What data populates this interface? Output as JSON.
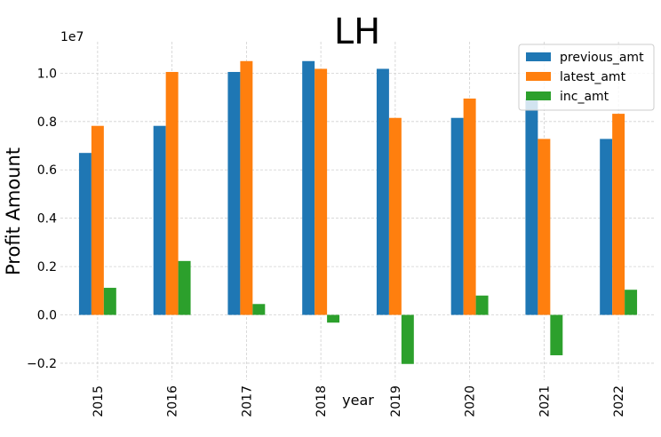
{
  "chart_data": {
    "type": "bar",
    "title": "LH",
    "xlabel": "year",
    "ylabel": "Profit Amount",
    "y_offset_label": "1e7",
    "y_scale": 10000000,
    "categories": [
      "2015",
      "2016",
      "2017",
      "2018",
      "2019",
      "2020",
      "2021",
      "2022"
    ],
    "series": [
      {
        "name": "previous_amt",
        "color": "#1f77b4",
        "values": [
          6700000,
          7820000,
          10050000,
          10500000,
          10180000,
          8150000,
          8950000,
          7280000
        ]
      },
      {
        "name": "latest_amt",
        "color": "#ff7f0e",
        "values": [
          7820000,
          10050000,
          10500000,
          10180000,
          8150000,
          8950000,
          7280000,
          8320000
        ]
      },
      {
        "name": "inc_amt",
        "color": "#2ca02c",
        "values": [
          1120000,
          2230000,
          450000,
          -320000,
          -2030000,
          800000,
          -1670000,
          1040000
        ]
      }
    ],
    "y_ticks": [
      -2000000,
      0,
      2000000,
      4000000,
      6000000,
      8000000,
      10000000
    ],
    "y_tick_labels": [
      "−0.2",
      "0.0",
      "0.2",
      "0.4",
      "0.6",
      "0.8",
      "1.0"
    ],
    "ylim": [
      -2700000,
      11300000
    ],
    "grid": true,
    "legend_position": "top-right"
  }
}
